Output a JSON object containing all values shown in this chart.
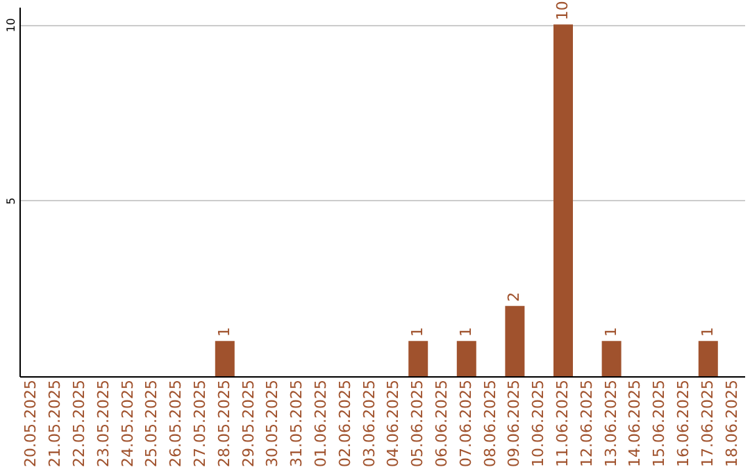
{
  "chart_data": {
    "type": "bar",
    "categories": [
      "20.05.2025",
      "21.05.2025",
      "22.05.2025",
      "23.05.2025",
      "24.05.2025",
      "25.05.2025",
      "26.05.2025",
      "27.05.2025",
      "28.05.2025",
      "29.05.2025",
      "30.05.2025",
      "31.05.2025",
      "01.06.2025",
      "02.06.2025",
      "03.06.2025",
      "04.06.2025",
      "05.06.2025",
      "06.06.2025",
      "07.06.2025",
      "08.06.2025",
      "09.06.2025",
      "10.06.2025",
      "11.06.2025",
      "12.06.2025",
      "13.06.2025",
      "14.06.2025",
      "15.06.2025",
      "16.06.2025",
      "17.06.2025",
      "18.06.2025"
    ],
    "values": [
      0,
      0,
      0,
      0,
      0,
      0,
      0,
      0,
      1,
      0,
      0,
      0,
      0,
      0,
      0,
      0,
      1,
      0,
      1,
      0,
      2,
      0,
      10,
      0,
      1,
      0,
      0,
      0,
      1,
      0
    ],
    "value_labels": [
      null,
      null,
      null,
      null,
      null,
      null,
      null,
      null,
      "1",
      null,
      null,
      null,
      null,
      null,
      null,
      null,
      "1",
      null,
      "1",
      null,
      "2",
      null,
      "10",
      null,
      "1",
      null,
      null,
      null,
      "1",
      null
    ],
    "color": "#a0522d",
    "ylim": [
      0,
      10.5
    ],
    "yticks": [
      5,
      10
    ],
    "grid": "y"
  }
}
